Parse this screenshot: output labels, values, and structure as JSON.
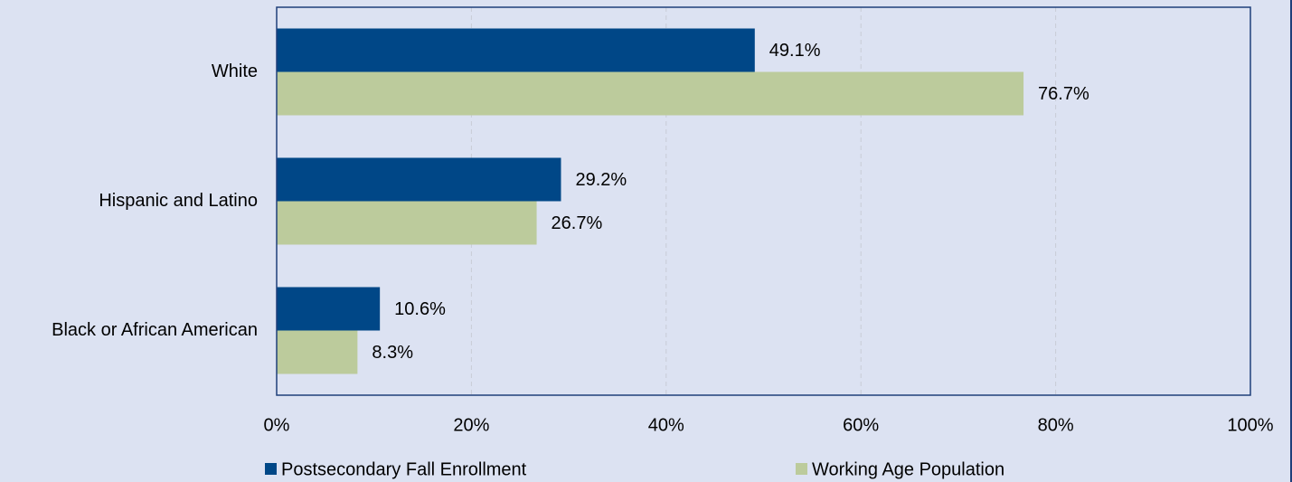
{
  "chart_data": {
    "type": "barh",
    "categories": [
      "White",
      "Hispanic and Latino",
      "Black or African American"
    ],
    "series": [
      {
        "name": "Postsecondary Fall Enrollment",
        "color": "#004787",
        "values": [
          49.1,
          29.2,
          10.6
        ],
        "value_labels": [
          "49.1%",
          "29.2%",
          "10.6%"
        ]
      },
      {
        "name": "Working Age Population",
        "color": "#bccb9c",
        "values": [
          76.7,
          26.7,
          8.3
        ],
        "value_labels": [
          "76.7%",
          "26.7%",
          "8.3%"
        ]
      }
    ],
    "xlim": [
      0,
      100
    ],
    "xticks": [
      {
        "value": 0,
        "label": "0%"
      },
      {
        "value": 20,
        "label": "20%"
      },
      {
        "value": 40,
        "label": "40%"
      },
      {
        "value": 60,
        "label": "60%"
      },
      {
        "value": 80,
        "label": "80%"
      },
      {
        "value": 100,
        "label": "100%"
      }
    ],
    "grid": true,
    "legend": "bottom"
  }
}
